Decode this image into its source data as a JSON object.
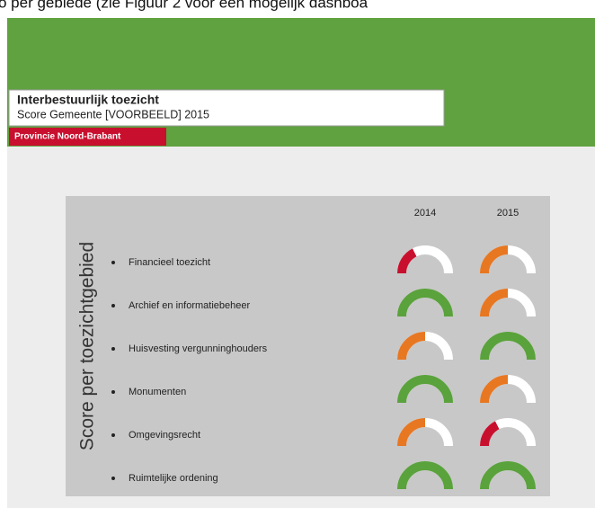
{
  "page": {
    "top_text": "o per gebiede (zie Figuur 2 voor een mogelijk dashboa",
    "header": {
      "title": "Interbestuurlijk toezicht",
      "subtitle": "Score Gemeente [VOORBEELD] 2015",
      "organization": "Provincie Noord-Brabant"
    },
    "dashboard": {
      "axis_title": "Score per toezichtgebied",
      "years": [
        "2014",
        "2015"
      ],
      "rows": [
        {
          "label": "Financieel toezicht",
          "scores": [
            {
              "color": "#c8102e",
              "fill": 35
            },
            {
              "color": "#e87722",
              "fill": 50
            }
          ]
        },
        {
          "label": "Archief en informatiebeheer",
          "scores": [
            {
              "color": "#5aa23c",
              "fill": 100
            },
            {
              "color": "#e87722",
              "fill": 50
            }
          ]
        },
        {
          "label": "Huisvesting vergunninghouders",
          "scores": [
            {
              "color": "#e87722",
              "fill": 50
            },
            {
              "color": "#5aa23c",
              "fill": 100
            }
          ]
        },
        {
          "label": "Monumenten",
          "scores": [
            {
              "color": "#5aa23c",
              "fill": 100
            },
            {
              "color": "#e87722",
              "fill": 50
            }
          ]
        },
        {
          "label": "Omgevingsrecht",
          "scores": [
            {
              "color": "#e87722",
              "fill": 50
            },
            {
              "color": "#c8102e",
              "fill": 35
            }
          ]
        },
        {
          "label": "Ruimtelijke ordening",
          "scores": [
            {
              "color": "#5aa23c",
              "fill": 100
            },
            {
              "color": "#5aa23c",
              "fill": 100
            }
          ]
        }
      ]
    }
  }
}
